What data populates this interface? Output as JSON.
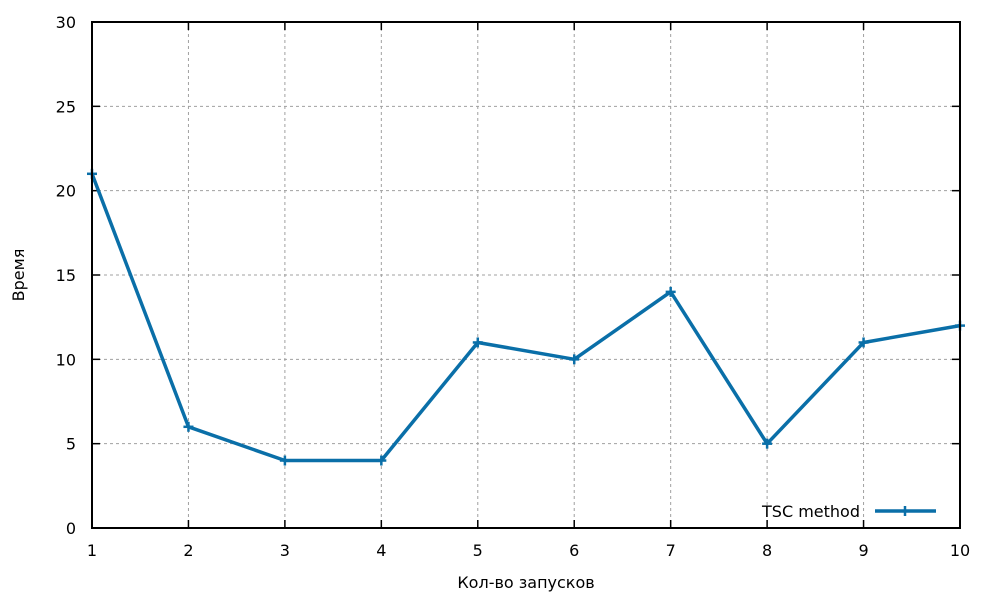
{
  "chart_data": {
    "type": "line",
    "xlabel": "Кол-во запусков",
    "ylabel": "Время",
    "xlim": [
      1,
      10
    ],
    "ylim": [
      0,
      30
    ],
    "xticks": [
      1,
      2,
      3,
      4,
      5,
      6,
      7,
      8,
      9,
      10
    ],
    "yticks": [
      0,
      5,
      10,
      15,
      20,
      25,
      30
    ],
    "grid": true,
    "legend_position": "bottom-right",
    "series": [
      {
        "name": "TSC method",
        "color": "#0a6fa8",
        "marker": "plus",
        "x": [
          1,
          2,
          3,
          4,
          5,
          6,
          7,
          8,
          9,
          10
        ],
        "y": [
          21,
          6,
          4,
          4,
          11,
          10,
          14,
          5,
          11,
          12
        ]
      }
    ]
  }
}
